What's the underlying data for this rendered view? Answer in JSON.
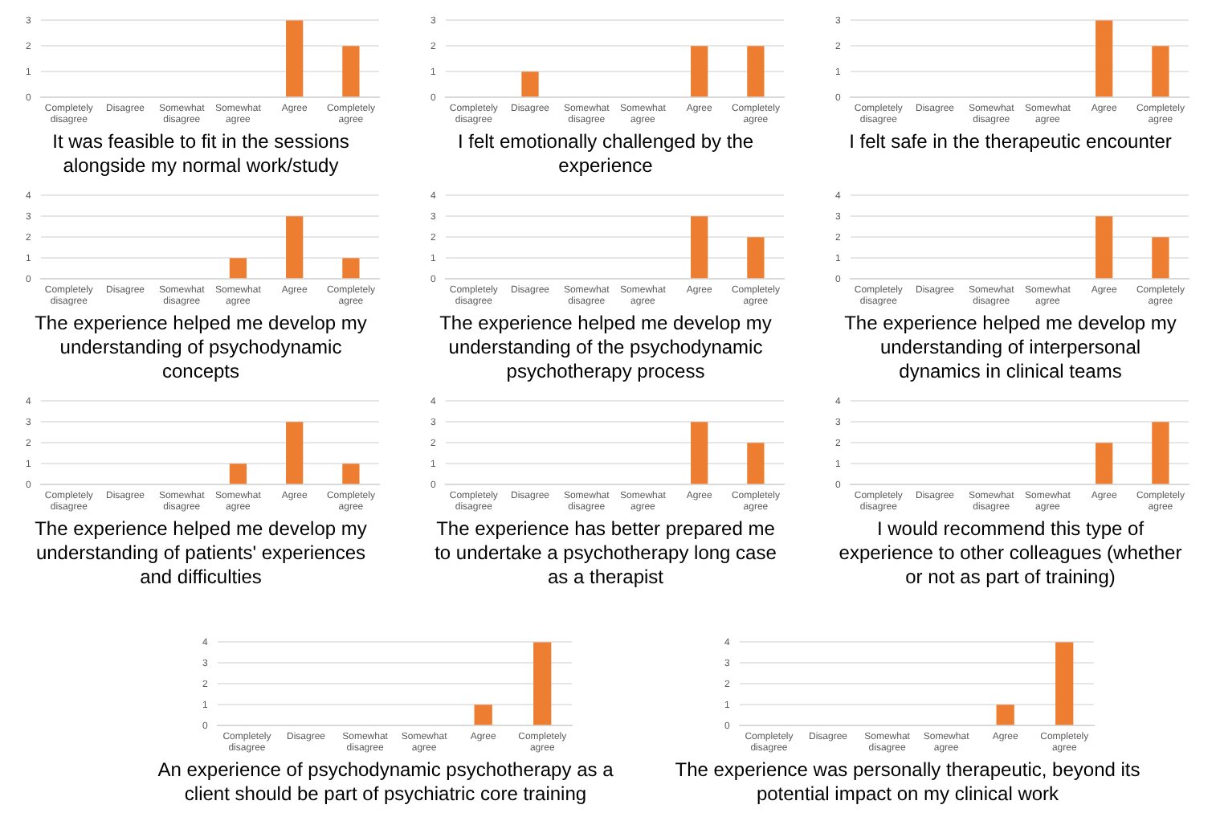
{
  "chart_data": [
    {
      "type": "bar",
      "title": "It was feasible to fit in the sessions alongside my normal work/study",
      "categories": [
        "Completely disagree",
        "Disagree",
        "Somewhat disagree",
        "Somewhat agree",
        "Agree",
        "Completely agree"
      ],
      "values": [
        0,
        0,
        0,
        0,
        3,
        2
      ],
      "color": "#ed7d31",
      "ylim": [
        0,
        3
      ],
      "yticks": [
        0,
        1,
        2,
        3
      ],
      "grid": "y"
    },
    {
      "type": "bar",
      "title": "I felt emotionally challenged by the experience",
      "categories": [
        "Completely disagree",
        "Disagree",
        "Somewhat disagree",
        "Somewhat agree",
        "Agree",
        "Completely agree"
      ],
      "values": [
        0,
        1,
        0,
        0,
        2,
        2
      ],
      "color": "#ed7d31",
      "ylim": [
        0,
        3
      ],
      "yticks": [
        0,
        1,
        2,
        3
      ],
      "grid": "y"
    },
    {
      "type": "bar",
      "title": "I felt safe in the therapeutic encounter",
      "categories": [
        "Completely disagree",
        "Disagree",
        "Somewhat disagree",
        "Somewhat agree",
        "Agree",
        "Completely agree"
      ],
      "values": [
        0,
        0,
        0,
        0,
        3,
        2
      ],
      "color": "#ed7d31",
      "ylim": [
        0,
        3
      ],
      "yticks": [
        0,
        1,
        2,
        3
      ],
      "grid": "y"
    },
    {
      "type": "bar",
      "title": "The experience helped me develop my understanding of psychodynamic concepts",
      "categories": [
        "Completely disagree",
        "Disagree",
        "Somewhat disagree",
        "Somewhat agree",
        "Agree",
        "Completely agree"
      ],
      "values": [
        0,
        0,
        0,
        1,
        3,
        1
      ],
      "color": "#ed7d31",
      "ylim": [
        0,
        4
      ],
      "yticks": [
        0,
        1,
        2,
        3,
        4
      ],
      "grid": "y"
    },
    {
      "type": "bar",
      "title": "The experience helped me develop my understanding of the psychodynamic psychotherapy process",
      "categories": [
        "Completely disagree",
        "Disagree",
        "Somewhat disagree",
        "Somewhat agree",
        "Agree",
        "Completely agree"
      ],
      "values": [
        0,
        0,
        0,
        0,
        3,
        2
      ],
      "color": "#ed7d31",
      "ylim": [
        0,
        4
      ],
      "yticks": [
        0,
        1,
        2,
        3,
        4
      ],
      "grid": "y"
    },
    {
      "type": "bar",
      "title": "The experience helped me develop my understanding of interpersonal dynamics in clinical teams",
      "categories": [
        "Completely disagree",
        "Disagree",
        "Somewhat disagree",
        "Somewhat agree",
        "Agree",
        "Completely agree"
      ],
      "values": [
        0,
        0,
        0,
        0,
        3,
        2
      ],
      "color": "#ed7d31",
      "ylim": [
        0,
        4
      ],
      "yticks": [
        0,
        1,
        2,
        3,
        4
      ],
      "grid": "y"
    },
    {
      "type": "bar",
      "title": "The experience helped me develop my understanding of patients' experiences and difficulties",
      "categories": [
        "Completely disagree",
        "Disagree",
        "Somewhat disagree",
        "Somewhat agree",
        "Agree",
        "Completely agree"
      ],
      "values": [
        0,
        0,
        0,
        1,
        3,
        1
      ],
      "color": "#ed7d31",
      "ylim": [
        0,
        4
      ],
      "yticks": [
        0,
        1,
        2,
        3,
        4
      ],
      "grid": "y"
    },
    {
      "type": "bar",
      "title": "The experience has better prepared me to undertake a psychotherapy long case as a therapist",
      "categories": [
        "Completely disagree",
        "Disagree",
        "Somewhat disagree",
        "Somewhat agree",
        "Agree",
        "Completely agree"
      ],
      "values": [
        0,
        0,
        0,
        0,
        3,
        2
      ],
      "color": "#ed7d31",
      "ylim": [
        0,
        4
      ],
      "yticks": [
        0,
        1,
        2,
        3,
        4
      ],
      "grid": "y"
    },
    {
      "type": "bar",
      "title": "I would recommend this type of experience to other colleagues (whether or not as part of training)",
      "categories": [
        "Completely disagree",
        "Disagree",
        "Somewhat disagree",
        "Somewhat agree",
        "Agree",
        "Completely agree"
      ],
      "values": [
        0,
        0,
        0,
        0,
        2,
        3
      ],
      "color": "#ed7d31",
      "ylim": [
        0,
        4
      ],
      "yticks": [
        0,
        1,
        2,
        3,
        4
      ],
      "grid": "y"
    },
    {
      "type": "bar",
      "title": "An experience of psychodynamic psychotherapy as a client should be part of psychiatric core training",
      "categories": [
        "Completely disagree",
        "Disagree",
        "Somewhat disagree",
        "Somewhat agree",
        "Agree",
        "Completely agree"
      ],
      "values": [
        0,
        0,
        0,
        0,
        1,
        4
      ],
      "color": "#ed7d31",
      "ylim": [
        0,
        4
      ],
      "yticks": [
        0,
        1,
        2,
        3,
        4
      ],
      "grid": "y"
    },
    {
      "type": "bar",
      "title": "The experience was personally therapeutic, beyond its potential impact on my clinical work",
      "categories": [
        "Completely disagree",
        "Disagree",
        "Somewhat disagree",
        "Somewhat agree",
        "Agree",
        "Completely agree"
      ],
      "values": [
        0,
        0,
        0,
        0,
        1,
        4
      ],
      "color": "#ed7d31",
      "ylim": [
        0,
        4
      ],
      "yticks": [
        0,
        1,
        2,
        3,
        4
      ],
      "grid": "y"
    }
  ]
}
